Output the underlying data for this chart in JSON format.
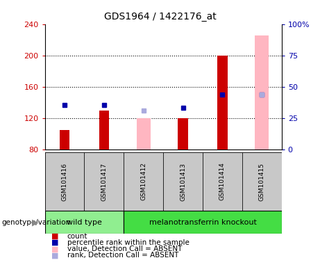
{
  "title": "GDS1964 / 1422176_at",
  "samples": [
    "GSM101416",
    "GSM101417",
    "GSM101412",
    "GSM101413",
    "GSM101414",
    "GSM101415"
  ],
  "x_positions": [
    1,
    2,
    3,
    4,
    5,
    6
  ],
  "red_bars": [
    105,
    130,
    null,
    120,
    200,
    null
  ],
  "pink_bars": [
    null,
    null,
    120,
    null,
    null,
    225
  ],
  "blue_dots": [
    137,
    137,
    null,
    133,
    150,
    150
  ],
  "lavender_dots": [
    null,
    null,
    130,
    null,
    null,
    150
  ],
  "ylim_left": [
    80,
    240
  ],
  "ylim_right": [
    0,
    100
  ],
  "yticks_left": [
    80,
    120,
    160,
    200,
    240
  ],
  "yticks_right": [
    0,
    25,
    50,
    75,
    100
  ],
  "yticklabels_right": [
    "0",
    "25",
    "50",
    "75",
    "100%"
  ],
  "bar_bottom": 80,
  "red_bar_width": 0.25,
  "pink_bar_width": 0.35,
  "wild_type_label": "wild type",
  "knockout_label": "melanotransferrin knockout",
  "wild_type_color": "#90EE90",
  "knockout_color": "#44DD44",
  "cell_bg_color": "#C8C8C8",
  "plot_bg_color": "#FFFFFF",
  "red_color": "#CC0000",
  "pink_color": "#FFB6C1",
  "blue_color": "#0000AA",
  "lavender_color": "#AAAADD",
  "legend_items": [
    {
      "label": "count",
      "color": "#CC0000"
    },
    {
      "label": "percentile rank within the sample",
      "color": "#0000AA"
    },
    {
      "label": "value, Detection Call = ABSENT",
      "color": "#FFB6C1"
    },
    {
      "label": "rank, Detection Call = ABSENT",
      "color": "#AAAADD"
    }
  ]
}
